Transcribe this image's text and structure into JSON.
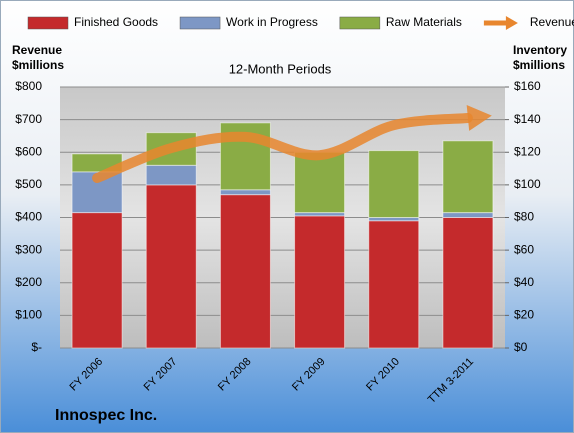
{
  "chart_data": {
    "type": "bar",
    "stacked": true,
    "title": "12-Month Periods",
    "company": "Innospec Inc.",
    "y_label": [
      "Revenue",
      "$millions"
    ],
    "y2_label": [
      "Inventory",
      "$millions"
    ],
    "categories": [
      "FY 2006",
      "FY 2007",
      "FY 2008",
      "FY 2009",
      "FY 2010",
      "TTM 3-2011"
    ],
    "series": [
      {
        "name": "Finished Goods",
        "color": "#c42a2c",
        "axis": "y2",
        "values": [
          83,
          100,
          94,
          81,
          78,
          80
        ]
      },
      {
        "name": "Work in Progress",
        "color": "#7d97c5",
        "axis": "y2",
        "values": [
          25,
          12,
          3,
          2,
          2,
          3
        ]
      },
      {
        "name": "Raw Materials",
        "color": "#8aac45",
        "axis": "y2",
        "values": [
          11,
          20,
          41,
          37,
          41,
          44
        ]
      },
      {
        "name": "Revenue",
        "color": "#e8862e",
        "type": "line",
        "axis": "y",
        "values": [
          521,
          613,
          647,
          591,
          683,
          705
        ]
      }
    ],
    "ylim": [
      0,
      800
    ],
    "yticks": [
      {
        "value": 0,
        "label": "$-"
      },
      {
        "value": 100,
        "label": "$100"
      },
      {
        "value": 200,
        "label": "$200"
      },
      {
        "value": 300,
        "label": "$300"
      },
      {
        "value": 400,
        "label": "$400"
      },
      {
        "value": 500,
        "label": "$500"
      },
      {
        "value": 600,
        "label": "$600"
      },
      {
        "value": 700,
        "label": "$700"
      },
      {
        "value": 800,
        "label": "$800"
      }
    ],
    "y2lim": [
      0,
      160
    ],
    "y2ticks": [
      {
        "value": 0,
        "label": "$0"
      },
      {
        "value": 20,
        "label": "$20"
      },
      {
        "value": 40,
        "label": "$40"
      },
      {
        "value": 60,
        "label": "$60"
      },
      {
        "value": 80,
        "label": "$80"
      },
      {
        "value": 100,
        "label": "$100"
      },
      {
        "value": 120,
        "label": "$120"
      },
      {
        "value": 140,
        "label": "$140"
      },
      {
        "value": 160,
        "label": "$160"
      }
    ],
    "grid": true
  }
}
